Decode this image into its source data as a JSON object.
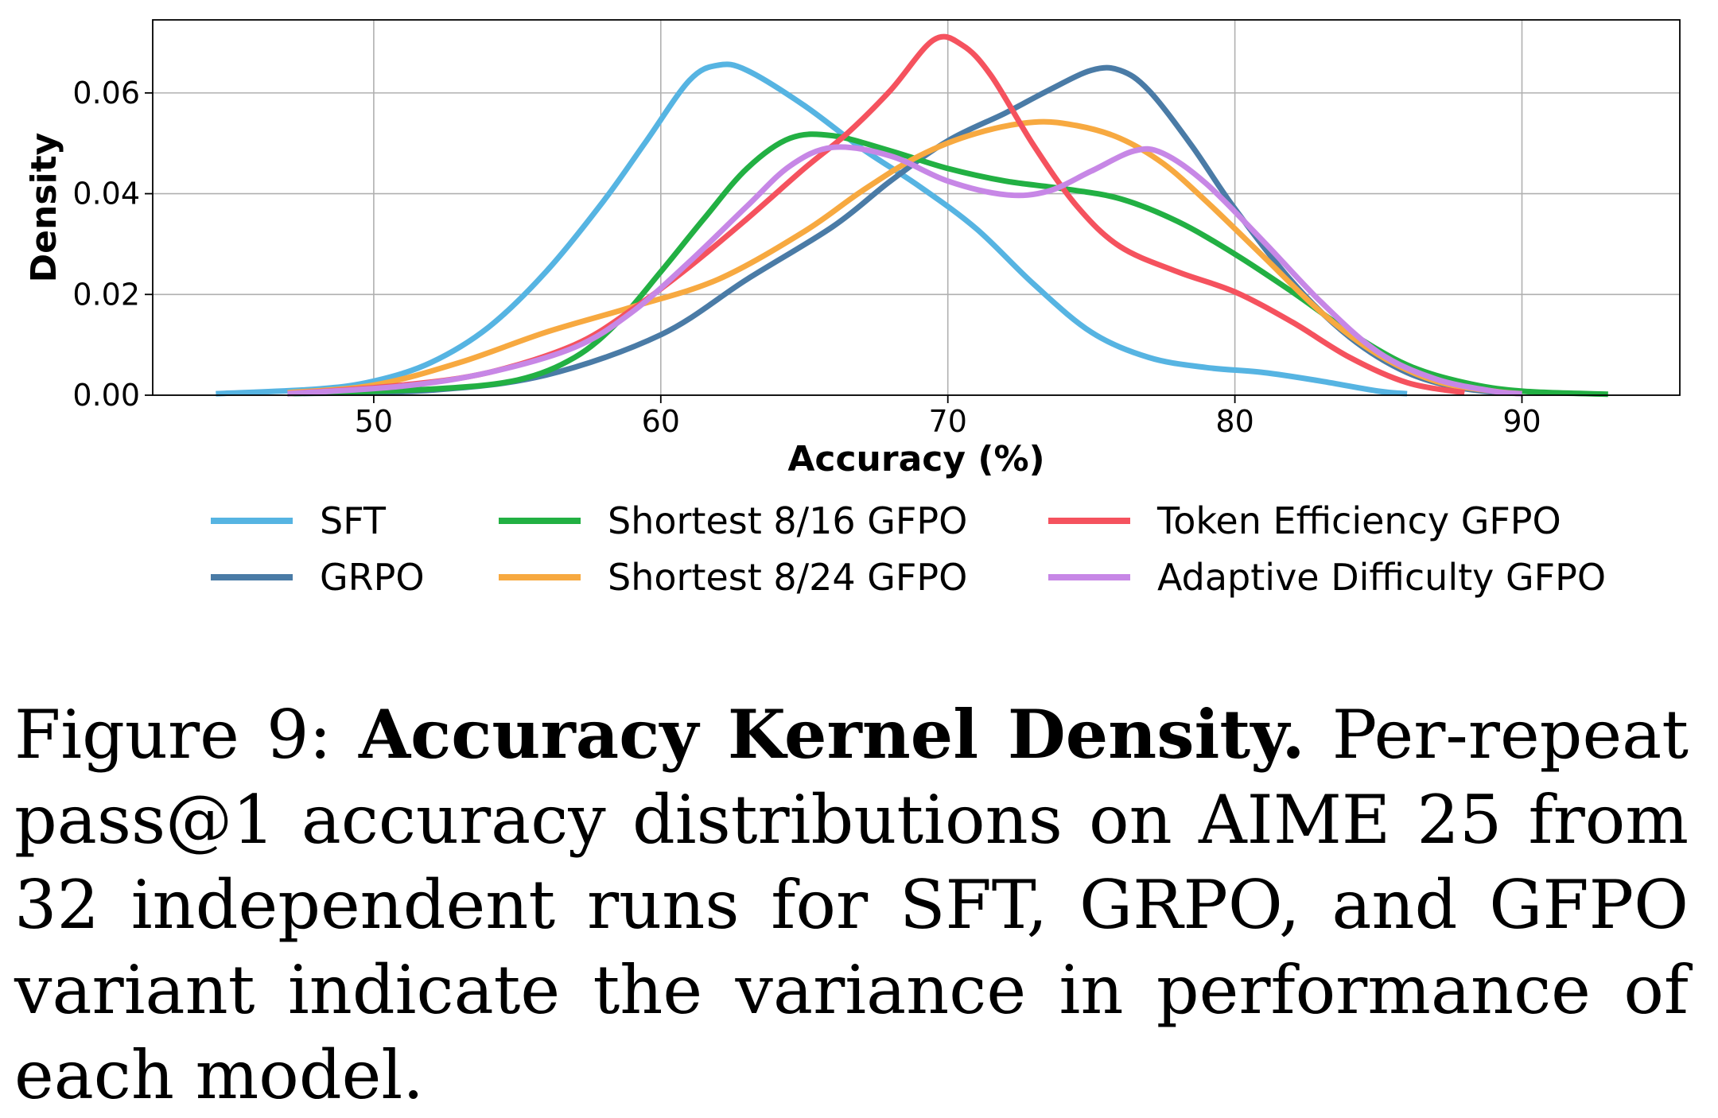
{
  "chart_data": {
    "type": "line",
    "xlabel": "Accuracy (%)",
    "ylabel": "Density",
    "xlim": [
      42.3,
      95.5
    ],
    "ylim": [
      0.0,
      0.0745
    ],
    "xticks": [
      50,
      60,
      70,
      80,
      90
    ],
    "yticks": [
      0.0,
      0.02,
      0.04,
      0.06
    ],
    "xtick_labels": [
      "50",
      "60",
      "70",
      "80",
      "90"
    ],
    "ytick_labels": [
      "0.00",
      "0.02",
      "0.04",
      "0.06"
    ],
    "grid": true,
    "legend_position": "bottom",
    "series": [
      {
        "name": "SFT",
        "color": "#56b4e2",
        "points": [
          [
            44.5,
            0.0003
          ],
          [
            48,
            0.0012
          ],
          [
            50,
            0.0028
          ],
          [
            52,
            0.0065
          ],
          [
            54,
            0.0135
          ],
          [
            56,
            0.0245
          ],
          [
            58,
            0.0385
          ],
          [
            59.5,
            0.0505
          ],
          [
            61,
            0.0625
          ],
          [
            62,
            0.0655
          ],
          [
            63,
            0.0645
          ],
          [
            65,
            0.0575
          ],
          [
            67,
            0.049
          ],
          [
            69,
            0.0415
          ],
          [
            71,
            0.033
          ],
          [
            73,
            0.022
          ],
          [
            75,
            0.0125
          ],
          [
            77,
            0.0075
          ],
          [
            79,
            0.0055
          ],
          [
            81,
            0.0045
          ],
          [
            83,
            0.0028
          ],
          [
            85,
            0.0008
          ],
          [
            86,
            0.0003
          ]
        ]
      },
      {
        "name": "GRPO",
        "color": "#4a7ba6",
        "points": [
          [
            47,
            0.0003
          ],
          [
            52,
            0.001
          ],
          [
            56,
            0.004
          ],
          [
            60,
            0.012
          ],
          [
            63,
            0.023
          ],
          [
            66,
            0.0335
          ],
          [
            68,
            0.0425
          ],
          [
            70,
            0.0505
          ],
          [
            72,
            0.056
          ],
          [
            73.5,
            0.0605
          ],
          [
            75,
            0.0645
          ],
          [
            76,
            0.0645
          ],
          [
            77,
            0.0605
          ],
          [
            78.5,
            0.0495
          ],
          [
            80,
            0.037
          ],
          [
            82,
            0.0225
          ],
          [
            84,
            0.0115
          ],
          [
            86,
            0.0045
          ],
          [
            88,
            0.0013
          ],
          [
            90,
            0.0003
          ]
        ]
      },
      {
        "name": "Shortest 8/16 GFPO",
        "color": "#22b043",
        "points": [
          [
            47,
            0.0003
          ],
          [
            52,
            0.0012
          ],
          [
            55,
            0.003
          ],
          [
            57,
            0.0075
          ],
          [
            58.5,
            0.0145
          ],
          [
            60,
            0.0245
          ],
          [
            61.5,
            0.035
          ],
          [
            63,
            0.045
          ],
          [
            64.5,
            0.051
          ],
          [
            66,
            0.0515
          ],
          [
            68,
            0.0485
          ],
          [
            70,
            0.045
          ],
          [
            72,
            0.0425
          ],
          [
            74,
            0.041
          ],
          [
            76,
            0.039
          ],
          [
            78,
            0.0345
          ],
          [
            80,
            0.028
          ],
          [
            82,
            0.0205
          ],
          [
            84,
            0.0125
          ],
          [
            86,
            0.006
          ],
          [
            88,
            0.0025
          ],
          [
            90,
            0.0008
          ],
          [
            93,
            0.0002
          ]
        ]
      },
      {
        "name": "Shortest 8/24 GFPO",
        "color": "#f7a940",
        "points": [
          [
            47,
            0.0005
          ],
          [
            50,
            0.002
          ],
          [
            53,
            0.0065
          ],
          [
            56,
            0.0125
          ],
          [
            59,
            0.0175
          ],
          [
            62,
            0.023
          ],
          [
            65,
            0.0325
          ],
          [
            67,
            0.0405
          ],
          [
            69,
            0.0475
          ],
          [
            71,
            0.052
          ],
          [
            73,
            0.0542
          ],
          [
            74.5,
            0.0535
          ],
          [
            76,
            0.051
          ],
          [
            77.5,
            0.046
          ],
          [
            79,
            0.0385
          ],
          [
            81,
            0.0275
          ],
          [
            83,
            0.0165
          ],
          [
            85,
            0.008
          ],
          [
            87,
            0.0028
          ],
          [
            89,
            0.0008
          ],
          [
            90,
            0.0003
          ]
        ]
      },
      {
        "name": "Token Efficiency GFPO",
        "color": "#f5525e",
        "points": [
          [
            47,
            0.0003
          ],
          [
            51,
            0.002
          ],
          [
            54,
            0.0045
          ],
          [
            57,
            0.01
          ],
          [
            59,
            0.017
          ],
          [
            61,
            0.0255
          ],
          [
            63,
            0.035
          ],
          [
            65,
            0.045
          ],
          [
            66.5,
            0.052
          ],
          [
            68,
            0.0605
          ],
          [
            69.5,
            0.0705
          ],
          [
            70.5,
            0.0695
          ],
          [
            71.5,
            0.0635
          ],
          [
            73,
            0.0495
          ],
          [
            74.5,
            0.0375
          ],
          [
            76,
            0.0295
          ],
          [
            78,
            0.0245
          ],
          [
            80,
            0.0205
          ],
          [
            82,
            0.0145
          ],
          [
            84,
            0.0075
          ],
          [
            86,
            0.0025
          ],
          [
            88,
            0.0005
          ]
        ]
      },
      {
        "name": "Adaptive Difficulty GFPO",
        "color": "#c787e6",
        "points": [
          [
            47,
            0.0003
          ],
          [
            51,
            0.0018
          ],
          [
            54,
            0.0045
          ],
          [
            57,
            0.0095
          ],
          [
            59,
            0.0165
          ],
          [
            61,
            0.0265
          ],
          [
            63,
            0.0375
          ],
          [
            64.5,
            0.0455
          ],
          [
            66,
            0.0492
          ],
          [
            68,
            0.0475
          ],
          [
            70,
            0.0425
          ],
          [
            72,
            0.0398
          ],
          [
            73.5,
            0.0405
          ],
          [
            75,
            0.0445
          ],
          [
            76.5,
            0.0485
          ],
          [
            77.5,
            0.048
          ],
          [
            79,
            0.042
          ],
          [
            81,
            0.0305
          ],
          [
            83,
            0.0185
          ],
          [
            85,
            0.0085
          ],
          [
            87,
            0.0032
          ],
          [
            89,
            0.0008
          ],
          [
            90,
            0.0003
          ]
        ]
      }
    ]
  },
  "caption": {
    "label": "Figure 9: ",
    "bold": "Accuracy Kernel Density.",
    "text": " Per-repeat pass@1 accuracy distributions on AIME 25 from 32 independent runs for SFT, GRPO, and GFPO variant indicate the variance in performance of each model."
  }
}
